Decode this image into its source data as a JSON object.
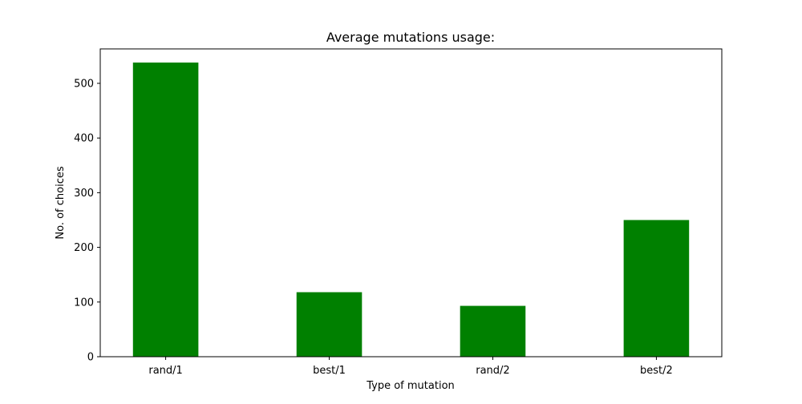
{
  "chart_data": {
    "type": "bar",
    "title": "Average mutations usage:",
    "xlabel": "Type of mutation",
    "ylabel": "No. of choices",
    "categories": [
      "rand/1",
      "best/1",
      "rand/2",
      "best/2"
    ],
    "values": [
      538,
      118,
      93,
      250
    ],
    "ylim": [
      0,
      563
    ],
    "yticks": [
      0,
      100,
      200,
      300,
      400,
      500
    ],
    "bar_color": "#008000",
    "grid": false,
    "legend": "none"
  }
}
